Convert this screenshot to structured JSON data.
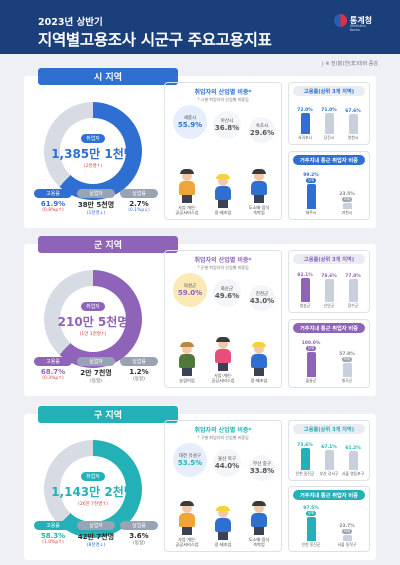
{
  "header": {
    "subtitle": "2023년 상반기",
    "title": "지역별고용조사 시군구 주요고용지표",
    "logo": "통계청",
    "logo_en": "Statistics Korea"
  },
  "source": "| ※ 전(前)연(年)대비 증감",
  "colors": {
    "si": "#2f6fd1",
    "gun": "#8e63b8",
    "gu": "#23b1b7",
    "navy": "#1b3f7a"
  },
  "sections": [
    {
      "id": "si",
      "tag": "시 지역",
      "center_label": "취업자",
      "center_value": "1,385만 1천명",
      "center_change": "(2천명↑)",
      "stats": [
        {
          "label": "고용률",
          "value": "61.9%",
          "change": "(0.8%p↑)"
        },
        {
          "label": "실업자",
          "value": "38만 5천명",
          "change": "(1천명↓)"
        },
        {
          "label": "실업률",
          "value": "2.7%",
          "change": "(0.1%p↓)"
        }
      ],
      "mid_title": "취업자의 산업별 비중*",
      "mid_note": "* 시별 취업자의 산업별 비중임",
      "bubbles": [
        {
          "label": "세종시",
          "value": "55.9%"
        },
        {
          "label": "아산시",
          "value": "36.8%"
        },
        {
          "label": "속초시",
          "value": "29.6%"
        }
      ],
      "people": [
        "사업·개인·\n공공서비스업",
        "광·제조업",
        "도소매·음식\n숙박업"
      ],
      "r1_title": "고용률(상위 3개 지역)",
      "r1_bars": [
        {
          "name": "서귀포시",
          "value": "72.0%",
          "h": 72
        },
        {
          "name": "당진시",
          "value": "71.0%",
          "h": 71
        },
        {
          "name": "영천시",
          "value": "67.6%",
          "h": 67.6
        }
      ],
      "r2_title": "거주지내 통근 취업자 비중",
      "r2_bars": [
        {
          "name": "제주시",
          "value": "99.2%",
          "h": 99.2,
          "tag": "상위"
        },
        {
          "name": "과천시",
          "value": "23.5%",
          "h": 23.5,
          "tag": "하위"
        }
      ]
    },
    {
      "id": "gun",
      "tag": "군 지역",
      "center_label": "취업자",
      "center_value": "210만 5천명",
      "center_change": "(1만 1천명↑)",
      "stats": [
        {
          "label": "고용률",
          "value": "68.7%",
          "change": "(0.3%p↑)"
        },
        {
          "label": "실업자",
          "value": "2만 7천명",
          "change": "(동일)"
        },
        {
          "label": "실업률",
          "value": "1.2%",
          "change": "(동일)"
        }
      ],
      "mid_title": "취업자의 산업별 비중*",
      "mid_note": "* 군별 취업자의 산업별 비중임",
      "bubbles": [
        {
          "label": "의성군",
          "value": "59.0%"
        },
        {
          "label": "화순군",
          "value": "49.6%"
        },
        {
          "label": "진천군",
          "value": "43.0%"
        }
      ],
      "people": [
        "농림어업",
        "사업·개인·\n공공서비스업",
        "광·제조업"
      ],
      "r1_title": "고용률(상위 3개 지역)",
      "r1_bars": [
        {
          "name": "청송군",
          "value": "82.1%",
          "h": 82.1
        },
        {
          "name": "신안군",
          "value": "78.6%",
          "h": 78.6
        },
        {
          "name": "장수군",
          "value": "77.8%",
          "h": 77.8
        }
      ],
      "r2_title": "거주지내 통근 취업자 비중",
      "r2_bars": [
        {
          "name": "울릉군",
          "value": "100.0%",
          "h": 100,
          "tag": "상위"
        },
        {
          "name": "칠곡군",
          "value": "57.8%",
          "h": 57.8,
          "tag": "하위"
        }
      ]
    },
    {
      "id": "gu",
      "tag": "구 지역",
      "center_label": "취업자",
      "center_value": "1,143만 2천명",
      "center_change": "(26만 7천명↑)",
      "stats": [
        {
          "label": "고용률",
          "value": "58.3%",
          "change": "(1.0%p↑)"
        },
        {
          "label": "실업자",
          "value": "42만 7천명",
          "change": "(8천명↓)"
        },
        {
          "label": "실업률",
          "value": "3.6%",
          "change": "(동일)"
        }
      ],
      "mid_title": "취업자의 산업별 비중*",
      "mid_note": "* 구별 취업자의 산업별 비중임",
      "bubbles": [
        {
          "label": "대전 유성구",
          "value": "53.5%"
        },
        {
          "label": "울산 북구",
          "value": "44.0%"
        },
        {
          "label": "부산 중구",
          "value": "33.8%"
        }
      ],
      "people": [
        "사업·개인·\n공공서비스업",
        "광·제조업",
        "도소매·음식\n숙박업"
      ],
      "r1_title": "고용률(상위 3개 지역)",
      "r1_bars": [
        {
          "name": "인천 옹진군",
          "value": "73.6%",
          "h": 73.6
        },
        {
          "name": "부산 강서구",
          "value": "67.1%",
          "h": 67.1
        },
        {
          "name": "서울 영등포구",
          "value": "61.2%",
          "h": 61.2
        }
      ],
      "r2_title": "거주지내 통근 취업자 비중",
      "r2_bars": [
        {
          "name": "인천 옹진군",
          "value": "97.5%",
          "h": 97.5,
          "tag": "상위"
        },
        {
          "name": "서울 동작구",
          "value": "23.7%",
          "h": 23.7,
          "tag": "하위"
        }
      ]
    }
  ]
}
